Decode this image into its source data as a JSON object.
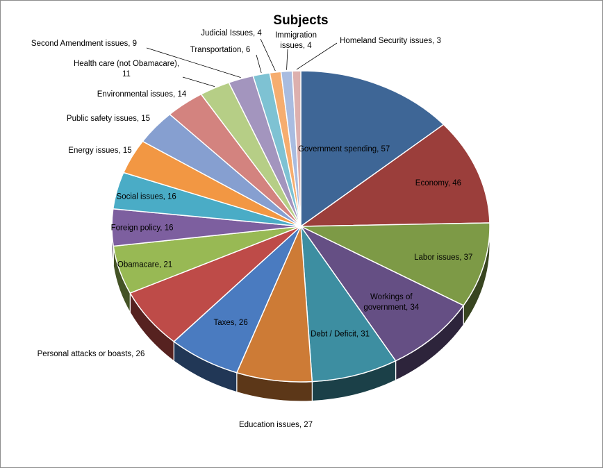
{
  "chart_data": {
    "type": "pie",
    "title": "Subjects",
    "legend": "none",
    "style": "3d",
    "slices": [
      {
        "label": "Government spending",
        "value": 57,
        "color": "#3E6696",
        "display": "Government spending, 57"
      },
      {
        "label": "Economy",
        "value": 46,
        "color": "#9B3E3B",
        "display": "Economy, 46"
      },
      {
        "label": "Labor issues",
        "value": 37,
        "color": "#7D9A46",
        "display": "Labor issues, 37"
      },
      {
        "label": "Workings of government",
        "value": 34,
        "color": "#654F84",
        "display": "Workings of government, 34"
      },
      {
        "label": "Debt / Deficit",
        "value": 31,
        "color": "#3D8EA1",
        "display": "Debt / Deficit, 31"
      },
      {
        "label": "Education issues",
        "value": 27,
        "color": "#CD7B36",
        "display": "Education issues, 27"
      },
      {
        "label": "Taxes",
        "value": 26,
        "color": "#4A7BC0",
        "display": "Taxes, 26"
      },
      {
        "label": "Personal attacks  or boasts",
        "value": 26,
        "color": "#BE4B48",
        "display": "Personal attacks  or boasts, 26"
      },
      {
        "label": "Obamacare",
        "value": 21,
        "color": "#98B954",
        "display": "Obamacare, 21"
      },
      {
        "label": "Foreign policy",
        "value": 16,
        "color": "#7D5F9F",
        "display": "Foreign policy, 16"
      },
      {
        "label": "Social issues",
        "value": 16,
        "color": "#4AACC6",
        "display": "Social issues, 16"
      },
      {
        "label": "Energy issues",
        "value": 15,
        "color": "#F29743",
        "display": "Energy issues, 15"
      },
      {
        "label": "Public safety issues",
        "value": 15,
        "color": "#869FD0",
        "display": "Public safety issues, 15"
      },
      {
        "label": "Environmental issues",
        "value": 14,
        "color": "#D3837F",
        "display": "Environmental issues, 14"
      },
      {
        "label": "Health care (not Obamacare)",
        "value": 11,
        "color": "#B6CE86",
        "display": "Health care (not Obamacare), 11"
      },
      {
        "label": "Second Amendment issues",
        "value": 9,
        "color": "#A395BE",
        "display": "Second Amendment issues, 9"
      },
      {
        "label": "Transportation",
        "value": 6,
        "color": "#7EC2D3",
        "display": "Transportation, 6"
      },
      {
        "label": "Judicial Issues",
        "value": 4,
        "color": "#F6AD6F",
        "display": "Judicial Issues, 4"
      },
      {
        "label": "Immigration issues",
        "value": 4,
        "color": "#A9BCE0",
        "display": "Immigration issues, 4"
      },
      {
        "label": "Homeland Security issues",
        "value": 3,
        "color": "#DDB0AE",
        "display": "Homeland Security issues, 3"
      }
    ]
  }
}
